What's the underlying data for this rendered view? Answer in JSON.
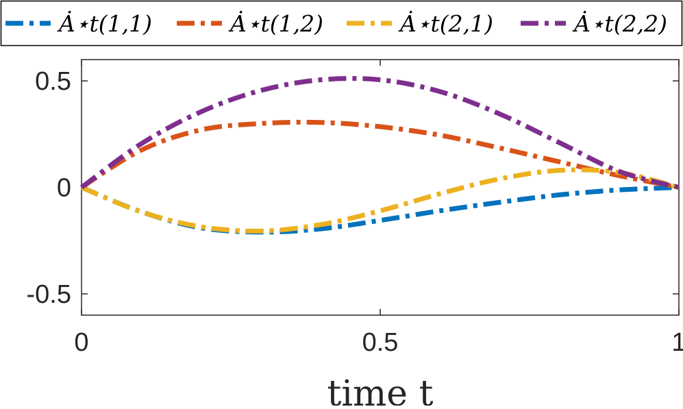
{
  "chart_data": {
    "type": "line",
    "title": "",
    "xlabel": "time   t",
    "ylabel": "",
    "xlim": [
      0,
      1
    ],
    "ylim": [
      -0.6,
      0.6
    ],
    "grid": false,
    "legend_position": "top",
    "x_ticks": [
      0,
      0.5,
      1
    ],
    "x_tick_labels": [
      "0",
      "0.5",
      "1"
    ],
    "y_ticks": [
      0.5,
      0,
      -0.5
    ],
    "y_tick_labels": [
      "0.5",
      "0",
      "-0.5"
    ],
    "x": [
      0,
      0.1,
      0.2,
      0.3,
      0.4,
      0.5,
      0.6,
      0.7,
      0.8,
      0.9,
      1.0
    ],
    "series": [
      {
        "name": "Ȧ⋆t(1,1)",
        "color": "#0072BD",
        "values": [
          0,
          -0.115,
          -0.19,
          -0.21,
          -0.195,
          -0.155,
          -0.11,
          -0.07,
          -0.035,
          -0.012,
          0
        ]
      },
      {
        "name": "Ȧ⋆t(1,2)",
        "color": "#D95319",
        "values": [
          0,
          0.175,
          0.27,
          0.3,
          0.305,
          0.285,
          0.245,
          0.185,
          0.12,
          0.055,
          0
        ]
      },
      {
        "name": "Ȧ⋆t(2,1)",
        "color": "#EDB120",
        "values": [
          0,
          -0.115,
          -0.185,
          -0.205,
          -0.175,
          -0.11,
          -0.03,
          0.04,
          0.08,
          0.07,
          0
        ]
      },
      {
        "name": "Ȧ⋆t(2,2)",
        "color": "#7E2F8E",
        "values": [
          0,
          0.205,
          0.355,
          0.455,
          0.505,
          0.505,
          0.45,
          0.345,
          0.21,
          0.075,
          0
        ]
      }
    ]
  }
}
